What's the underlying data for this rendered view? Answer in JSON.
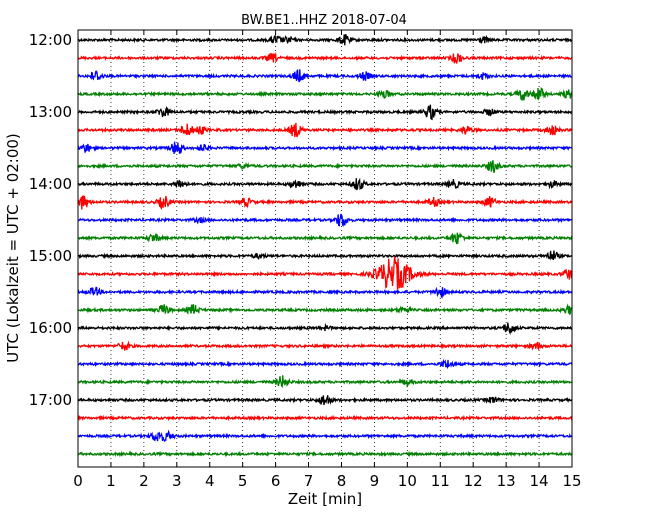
{
  "chart_data": {
    "type": "line",
    "title": "BW.BE1..HHZ 2018-07-04",
    "xlabel": "Zeit  [min]",
    "ylabel": "UTC (Lokalzeit = UTC + 02:00)",
    "xlim": [
      0,
      15
    ],
    "x_ticks": [
      "0",
      "1",
      "2",
      "3",
      "4",
      "5",
      "6",
      "7",
      "8",
      "9",
      "10",
      "11",
      "12",
      "13",
      "14",
      "15"
    ],
    "y_tick_labels": [
      "12:00",
      "13:00",
      "14:00",
      "15:00",
      "16:00",
      "17:00"
    ],
    "grid": "vertical dotted",
    "trace_colors": [
      "#000000",
      "#ff0000",
      "#0000ff",
      "#008000"
    ],
    "traces": [
      {
        "start": "12:00",
        "color": "#000000",
        "events": [
          {
            "t": 6.0,
            "a": 4
          },
          {
            "t": 6.4,
            "a": 3
          },
          {
            "t": 8.1,
            "a": 5
          },
          {
            "t": 12.3,
            "a": 3
          }
        ]
      },
      {
        "start": "12:15",
        "color": "#ff0000",
        "events": [
          {
            "t": 5.9,
            "a": 4
          },
          {
            "t": 11.5,
            "a": 5
          }
        ]
      },
      {
        "start": "12:30",
        "color": "#0000ff",
        "events": [
          {
            "t": 0.55,
            "a": 5
          },
          {
            "t": 6.7,
            "a": 6
          },
          {
            "t": 8.7,
            "a": 4
          },
          {
            "t": 12.3,
            "a": 3
          }
        ]
      },
      {
        "start": "12:45",
        "color": "#008000",
        "events": [
          {
            "t": 9.3,
            "a": 4
          },
          {
            "t": 13.5,
            "a": 6
          },
          {
            "t": 14.0,
            "a": 6
          },
          {
            "t": 14.9,
            "a": 4
          }
        ]
      },
      {
        "start": "13:00",
        "color": "#000000",
        "events": [
          {
            "t": 2.6,
            "a": 5
          },
          {
            "t": 10.7,
            "a": 7
          },
          {
            "t": 12.5,
            "a": 3
          }
        ]
      },
      {
        "start": "13:15",
        "color": "#ff0000",
        "events": [
          {
            "t": 3.3,
            "a": 6
          },
          {
            "t": 3.7,
            "a": 4
          },
          {
            "t": 6.6,
            "a": 7
          },
          {
            "t": 11.8,
            "a": 4
          },
          {
            "t": 14.4,
            "a": 5
          }
        ]
      },
      {
        "start": "13:30",
        "color": "#0000ff",
        "events": [
          {
            "t": 0.25,
            "a": 4
          },
          {
            "t": 3.0,
            "a": 7
          },
          {
            "t": 3.8,
            "a": 3
          }
        ]
      },
      {
        "start": "13:45",
        "color": "#008000",
        "events": [
          {
            "t": 12.6,
            "a": 6
          },
          {
            "t": 5.0,
            "a": 2
          }
        ]
      },
      {
        "start": "14:00",
        "color": "#000000",
        "events": [
          {
            "t": 3.1,
            "a": 4
          },
          {
            "t": 6.6,
            "a": 4
          },
          {
            "t": 8.5,
            "a": 6
          },
          {
            "t": 11.4,
            "a": 4
          },
          {
            "t": 14.4,
            "a": 3
          }
        ]
      },
      {
        "start": "14:15",
        "color": "#ff0000",
        "events": [
          {
            "t": 0.15,
            "a": 7
          },
          {
            "t": 2.6,
            "a": 6
          },
          {
            "t": 5.1,
            "a": 4
          },
          {
            "t": 10.8,
            "a": 4
          },
          {
            "t": 12.5,
            "a": 5
          }
        ]
      },
      {
        "start": "14:30",
        "color": "#0000ff",
        "events": [
          {
            "t": 8.0,
            "a": 7
          },
          {
            "t": 3.7,
            "a": 2
          }
        ]
      },
      {
        "start": "14:45",
        "color": "#008000",
        "events": [
          {
            "t": 2.3,
            "a": 4
          },
          {
            "t": 11.5,
            "a": 6
          }
        ]
      },
      {
        "start": "15:00",
        "color": "#000000",
        "events": [
          {
            "t": 14.4,
            "a": 5
          },
          {
            "t": 5.5,
            "a": 2
          }
        ]
      },
      {
        "start": "15:15",
        "color": "#ff0000",
        "events": [
          {
            "t": 9.6,
            "a": 16
          },
          {
            "t": 14.9,
            "a": 5
          }
        ]
      },
      {
        "start": "15:30",
        "color": "#0000ff",
        "events": [
          {
            "t": 0.5,
            "a": 4
          },
          {
            "t": 11.0,
            "a": 5
          }
        ]
      },
      {
        "start": "15:45",
        "color": "#008000",
        "events": [
          {
            "t": 2.6,
            "a": 5
          },
          {
            "t": 3.5,
            "a": 5
          },
          {
            "t": 9.9,
            "a": 3
          },
          {
            "t": 14.9,
            "a": 4
          }
        ]
      },
      {
        "start": "16:00",
        "color": "#000000",
        "events": [
          {
            "t": 13.1,
            "a": 6
          },
          {
            "t": 7.5,
            "a": 2
          }
        ]
      },
      {
        "start": "16:15",
        "color": "#ff0000",
        "events": [
          {
            "t": 1.4,
            "a": 4
          },
          {
            "t": 13.9,
            "a": 3
          }
        ]
      },
      {
        "start": "16:30",
        "color": "#0000ff",
        "events": [
          {
            "t": 11.2,
            "a": 4
          }
        ]
      },
      {
        "start": "16:45",
        "color": "#008000",
        "events": [
          {
            "t": 6.2,
            "a": 6
          },
          {
            "t": 10.0,
            "a": 3
          }
        ]
      },
      {
        "start": "17:00",
        "color": "#000000",
        "events": [
          {
            "t": 7.5,
            "a": 6
          },
          {
            "t": 12.6,
            "a": 3
          }
        ]
      },
      {
        "start": "17:15",
        "color": "#ff0000",
        "events": []
      },
      {
        "start": "17:30",
        "color": "#0000ff",
        "events": [
          {
            "t": 2.4,
            "a": 5
          },
          {
            "t": 2.7,
            "a": 4
          }
        ]
      },
      {
        "start": "17:45",
        "color": "#008000",
        "events": []
      }
    ]
  }
}
